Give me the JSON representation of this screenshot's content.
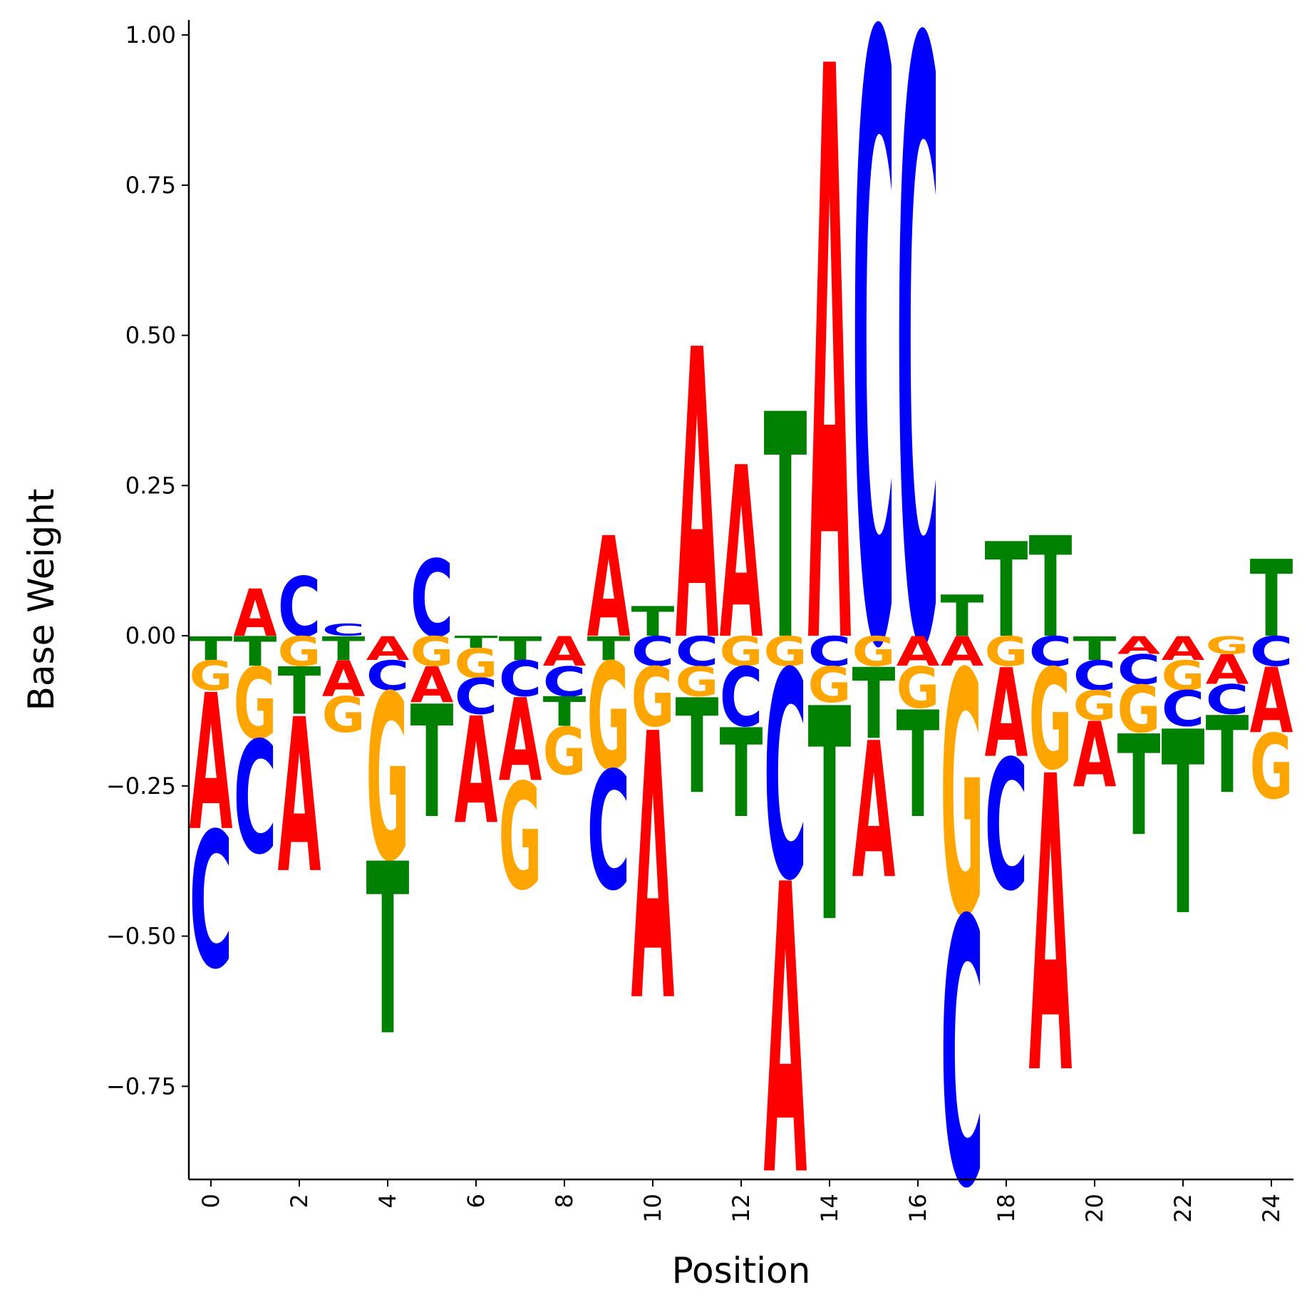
{
  "chart_data": {
    "type": "sequence-logo",
    "xlabel": "Position",
    "ylabel": "Base Weight",
    "xlim": [
      -0.5,
      24.5
    ],
    "ylim": [
      -0.905,
      1.025
    ],
    "xticks": [
      "0",
      "2",
      "4",
      "6",
      "8",
      "10",
      "12",
      "14",
      "16",
      "18",
      "20",
      "22",
      "24"
    ],
    "xtick_values": [
      0,
      2,
      4,
      6,
      8,
      10,
      12,
      14,
      16,
      18,
      20,
      22,
      24
    ],
    "yticks": [
      "1.00",
      "0.75",
      "0.50",
      "0.25",
      "0.00",
      "−0.25",
      "−0.50",
      "−0.75"
    ],
    "ytick_values": [
      1.0,
      0.75,
      0.5,
      0.25,
      0.0,
      -0.25,
      -0.5,
      -0.75
    ],
    "colors": {
      "A": "#ff0000",
      "C": "#0000ff",
      "G": "#ffa500",
      "T": "#008000"
    },
    "positions": [
      {
        "pos": 0,
        "A": -0.23,
        "C": -0.23,
        "G": -0.05,
        "T": -0.04
      },
      {
        "pos": 1,
        "A": 0.08,
        "C": -0.19,
        "G": -0.12,
        "T": -0.05
      },
      {
        "pos": 2,
        "A": -0.26,
        "C": 0.1,
        "G": -0.05,
        "T": -0.08
      },
      {
        "pos": 3,
        "A": -0.06,
        "C": 0.02,
        "G": -0.06,
        "T": -0.04
      },
      {
        "pos": 4,
        "A": -0.04,
        "C": -0.05,
        "G": -0.28,
        "T": -0.29
      },
      {
        "pos": 5,
        "A": -0.06,
        "C": 0.13,
        "G": -0.05,
        "T": -0.19
      },
      {
        "pos": 6,
        "A": -0.18,
        "C": -0.06,
        "G": -0.05,
        "T": -0.02
      },
      {
        "pos": 7,
        "A": -0.14,
        "C": -0.06,
        "G": -0.18,
        "T": -0.04
      },
      {
        "pos": 8,
        "A": -0.05,
        "C": -0.05,
        "G": -0.08,
        "T": -0.05
      },
      {
        "pos": 9,
        "A": 0.17,
        "C": -0.2,
        "G": -0.18,
        "T": -0.04
      },
      {
        "pos": 10,
        "A": -0.45,
        "C": -0.05,
        "G": -0.1,
        "T": 0.05
      },
      {
        "pos": 11,
        "A": 0.49,
        "C": -0.05,
        "G": -0.05,
        "T": -0.16
      },
      {
        "pos": 12,
        "A": 0.29,
        "C": -0.1,
        "G": -0.05,
        "T": -0.15
      },
      {
        "pos": 13,
        "A": -0.49,
        "C": -0.35,
        "G": -0.05,
        "T": 0.38
      },
      {
        "pos": 14,
        "A": 0.97,
        "C": -0.05,
        "G": -0.06,
        "T": -0.36
      },
      {
        "pos": 15,
        "A": -0.23,
        "C": 1.02,
        "G": -0.05,
        "T": -0.12
      },
      {
        "pos": 16,
        "A": -0.05,
        "C": 1.01,
        "G": -0.07,
        "T": -0.18
      },
      {
        "pos": 17,
        "A": -0.05,
        "C": -0.45,
        "G": -0.41,
        "T": 0.07
      },
      {
        "pos": 18,
        "A": -0.15,
        "C": -0.22,
        "G": -0.05,
        "T": 0.16
      },
      {
        "pos": 19,
        "A": -0.5,
        "C": -0.05,
        "G": -0.17,
        "T": 0.17
      },
      {
        "pos": 20,
        "A": -0.11,
        "C": -0.05,
        "G": -0.05,
        "T": -0.04
      },
      {
        "pos": 21,
        "A": -0.03,
        "C": -0.05,
        "G": -0.08,
        "T": -0.17
      },
      {
        "pos": 22,
        "A": -0.04,
        "C": -0.06,
        "G": -0.05,
        "T": -0.31
      },
      {
        "pos": 23,
        "A": -0.05,
        "C": -0.05,
        "G": -0.03,
        "T": -0.13
      },
      {
        "pos": 24,
        "A": -0.11,
        "C": -0.05,
        "G": -0.11,
        "T": 0.13
      }
    ]
  }
}
